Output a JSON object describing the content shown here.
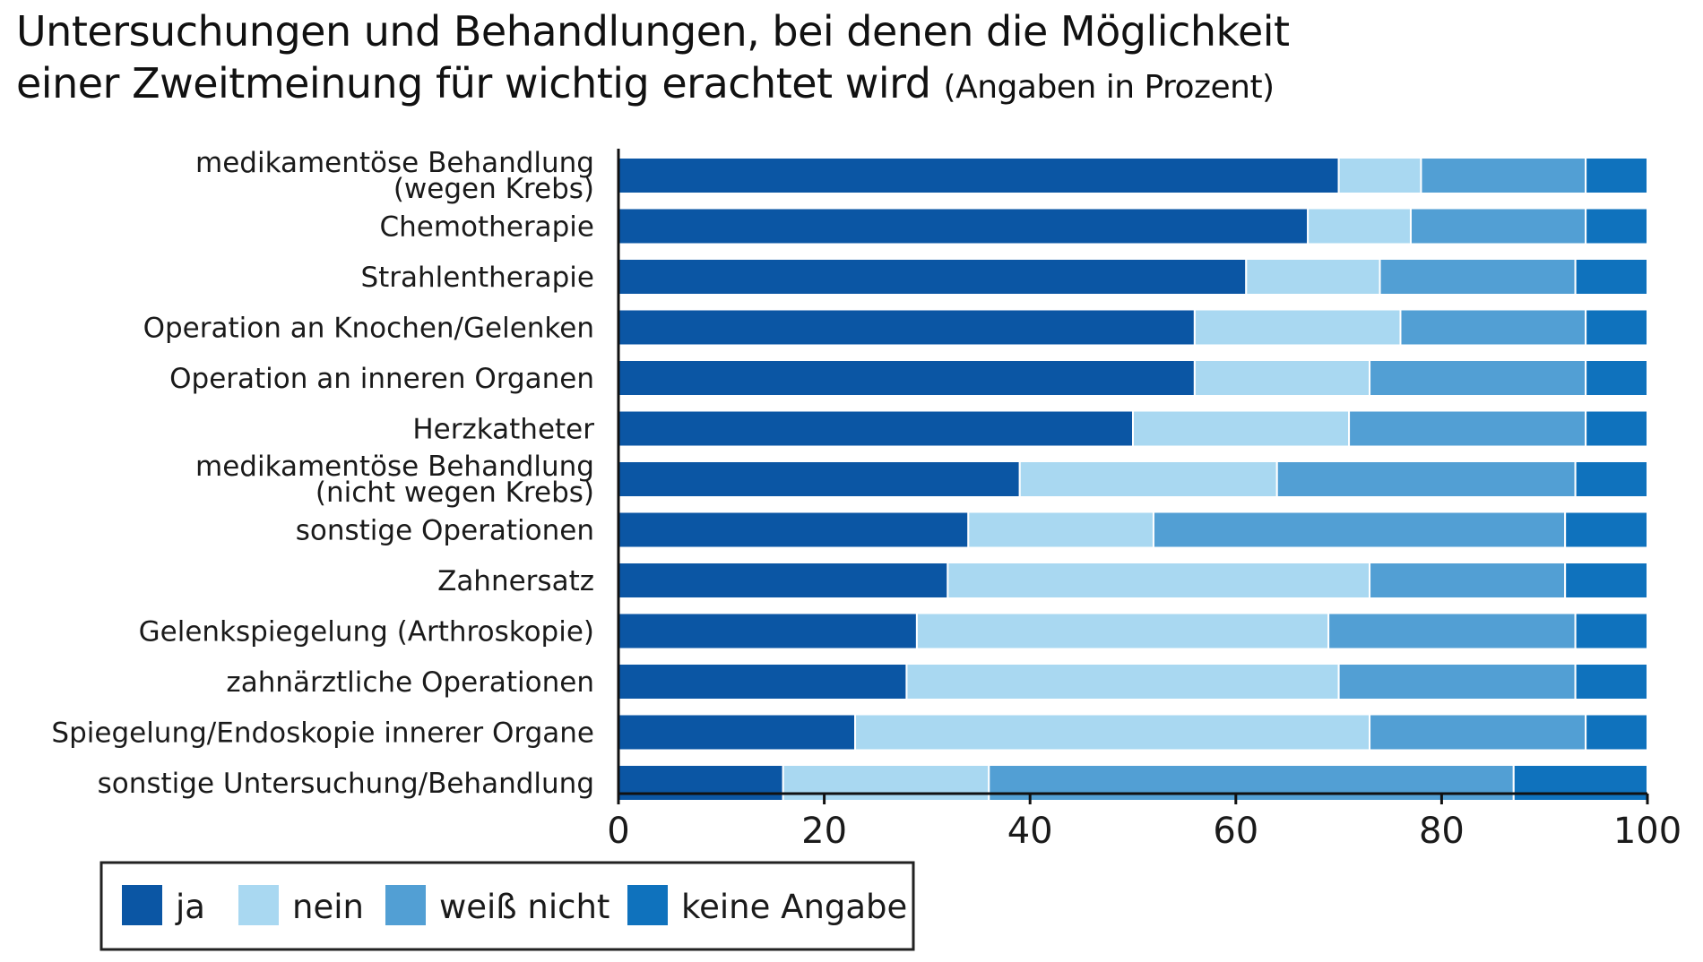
{
  "title_line1": "Untersuchungen und Behandlungen, bei denen die Möglichkeit",
  "title_line2": "einer Zweitmeinung für wichtig erachtet wird",
  "subtitle": "(Angaben in Prozent)",
  "chart_data": {
    "type": "bar",
    "orientation": "horizontal",
    "stacked": true,
    "categories": [
      [
        "medikamentöse Behandlung",
        "(wegen Krebs)"
      ],
      [
        "Chemotherapie"
      ],
      [
        "Strahlentherapie"
      ],
      [
        "Operation an Knochen/Gelenken"
      ],
      [
        "Operation an inneren Organen"
      ],
      [
        "Herzkatheter"
      ],
      [
        "medikamentöse Behandlung",
        "(nicht wegen Krebs)"
      ],
      [
        "sonstige Operationen"
      ],
      [
        "Zahnersatz"
      ],
      [
        "Gelenkspiegelung (Arthroskopie)"
      ],
      [
        "zahnärztliche Operationen"
      ],
      [
        "Spiegelung/Endoskopie innerer Organe"
      ],
      [
        "sonstige Untersuchung/Behandlung"
      ]
    ],
    "series": [
      {
        "name": "ja",
        "color": "#0b56a4",
        "values": [
          70,
          67,
          61,
          56,
          56,
          50,
          39,
          34,
          32,
          29,
          28,
          23,
          16
        ]
      },
      {
        "name": "nein",
        "color": "#a9d8f1",
        "values": [
          8,
          10,
          13,
          20,
          17,
          21,
          25,
          18,
          41,
          40,
          42,
          50,
          20
        ]
      },
      {
        "name": "weiß nicht",
        "color": "#529fd4",
        "values": [
          16,
          17,
          19,
          18,
          21,
          23,
          29,
          40,
          19,
          24,
          23,
          21,
          51
        ]
      },
      {
        "name": "keine Angabe",
        "color": "#0f72bd",
        "values": [
          6,
          6,
          7,
          6,
          6,
          6,
          7,
          8,
          8,
          7,
          7,
          6,
          13
        ]
      }
    ],
    "xlim": [
      0,
      100
    ],
    "xticks": [
      "0",
      "20",
      "40",
      "60",
      "80",
      "100"
    ],
    "xlabel": "",
    "ylabel": "",
    "legend_position": "bottom-left",
    "grid": false
  }
}
